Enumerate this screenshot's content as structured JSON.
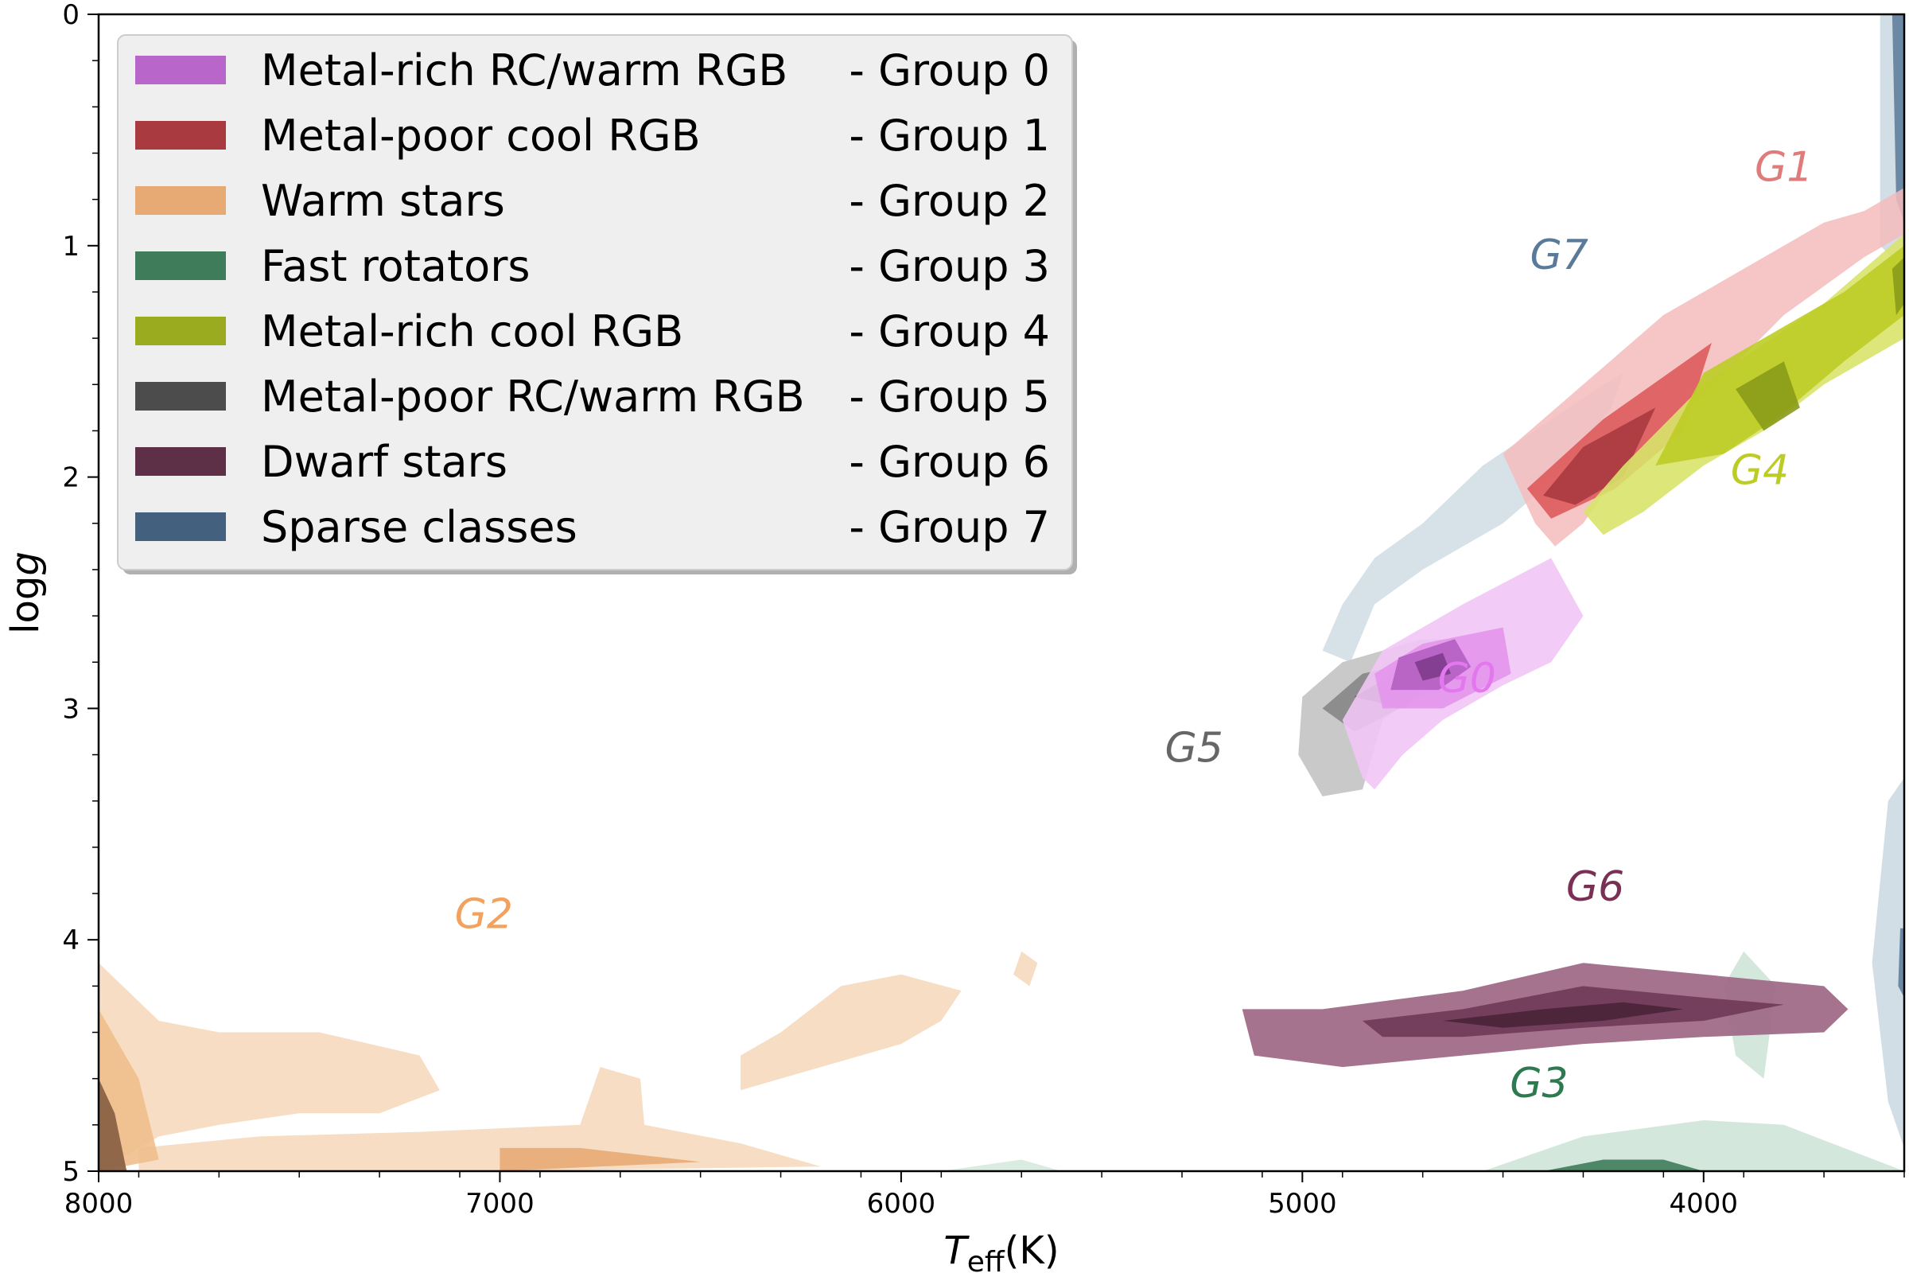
{
  "chart_data": {
    "type": "contour",
    "xlabel_main": "T",
    "xlabel_sub": "eff",
    "xlabel_unit": "(K)",
    "ylabel_main": "log",
    "ylabel_var": "g",
    "xlim": [
      8000,
      3500
    ],
    "ylim": [
      0,
      5
    ],
    "xticks": [
      8000,
      7000,
      6000,
      5000,
      4000
    ],
    "yticks": [
      0,
      1,
      2,
      3,
      4,
      5
    ],
    "x_minor_step": 200,
    "y_minor_step": 0.2,
    "legend_position": "upper-left",
    "legend": [
      {
        "name": "Metal-rich RC/warm RGB",
        "group": "- Group 0",
        "color": "#b866c9"
      },
      {
        "name": "Metal-poor cool RGB",
        "group": "- Group 1",
        "color": "#a83a40"
      },
      {
        "name": "Warm stars",
        "group": "- Group 2",
        "color": "#e8aa74"
      },
      {
        "name": "Fast rotators",
        "group": "- Group 3",
        "color": "#3e7c5a"
      },
      {
        "name": "Metal-rich cool RGB",
        "group": "- Group 4",
        "color": "#9aab1f"
      },
      {
        "name": "Metal-poor RC/warm RGB",
        "group": "- Group 5",
        "color": "#4c4c4c"
      },
      {
        "name": "Dwarf stars",
        "group": "- Group 6",
        "color": "#5e3048"
      },
      {
        "name": "Sparse classes",
        "group": "- Group 7",
        "color": "#44607f"
      }
    ],
    "annotations": [
      {
        "prefix": "G",
        "num": "0",
        "teff": 4590,
        "logg": 2.93,
        "color": "#e377ee"
      },
      {
        "prefix": "G",
        "num": "1",
        "teff": 3800,
        "logg": 0.72,
        "color": "#e07b7b"
      },
      {
        "prefix": "G",
        "num": "2",
        "teff": 7040,
        "logg": 3.95,
        "color": "#f2a15e"
      },
      {
        "prefix": "G",
        "num": "3",
        "teff": 4410,
        "logg": 4.68,
        "color": "#2e7a50"
      },
      {
        "prefix": "G",
        "num": "4",
        "teff": 3860,
        "logg": 2.03,
        "color": "#bccc25"
      },
      {
        "prefix": "G",
        "num": "5",
        "teff": 5270,
        "logg": 3.23,
        "color": "#666666"
      },
      {
        "prefix": "G",
        "num": "6",
        "teff": 4270,
        "logg": 3.83,
        "color": "#7a2f55"
      },
      {
        "prefix": "G",
        "num": "7",
        "teff": 4360,
        "logg": 1.1,
        "color": "#5a7a99"
      }
    ],
    "regions": [
      {
        "group": 7,
        "color": "#c9d8e0",
        "opacity": 0.85,
        "points": [
          [
            3560,
            0
          ],
          [
            3500,
            0
          ],
          [
            3500,
            1.1
          ],
          [
            3560,
            1.0
          ]
        ]
      },
      {
        "group": 7,
        "color": "#5f7f9c",
        "opacity": 0.9,
        "points": [
          [
            3530,
            0
          ],
          [
            3500,
            0
          ],
          [
            3500,
            0.9
          ],
          [
            3520,
            0.8
          ]
        ]
      },
      {
        "group": 7,
        "color": "#c9d8e0",
        "opacity": 0.85,
        "points": [
          [
            3540,
            3.4
          ],
          [
            3500,
            3.3
          ],
          [
            3500,
            4.9
          ],
          [
            3540,
            4.7
          ],
          [
            3580,
            4.1
          ]
        ]
      },
      {
        "group": 7,
        "color": "#5f7f9c",
        "opacity": 0.9,
        "points": [
          [
            3510,
            3.95
          ],
          [
            3500,
            3.95
          ],
          [
            3500,
            4.25
          ],
          [
            3515,
            4.2
          ]
        ]
      },
      {
        "group": 7,
        "color": "#c9d8e0",
        "opacity": 0.75,
        "points": [
          [
            4200,
            1.55
          ],
          [
            4250,
            1.6
          ],
          [
            4550,
            1.95
          ],
          [
            4700,
            2.2
          ],
          [
            4820,
            2.35
          ],
          [
            4900,
            2.55
          ],
          [
            4950,
            2.75
          ],
          [
            4880,
            2.8
          ],
          [
            4820,
            2.55
          ],
          [
            4700,
            2.4
          ],
          [
            4600,
            2.3
          ],
          [
            4500,
            2.2
          ],
          [
            4400,
            2.05
          ],
          [
            4320,
            1.9
          ],
          [
            4230,
            1.7
          ]
        ]
      },
      {
        "group": 1,
        "color": "#f4bcbc",
        "opacity": 0.85,
        "points": [
          [
            3500,
            0.75
          ],
          [
            3600,
            0.85
          ],
          [
            3700,
            0.9
          ],
          [
            3900,
            1.1
          ],
          [
            4100,
            1.3
          ],
          [
            4300,
            1.6
          ],
          [
            4500,
            1.9
          ],
          [
            4420,
            2.2
          ],
          [
            4370,
            2.3
          ],
          [
            4300,
            2.2
          ],
          [
            4200,
            1.95
          ],
          [
            4000,
            1.65
          ],
          [
            3800,
            1.3
          ],
          [
            3600,
            1.05
          ],
          [
            3500,
            0.95
          ]
        ]
      },
      {
        "group": 1,
        "color": "#de5a5c",
        "opacity": 0.9,
        "points": [
          [
            3980,
            1.42
          ],
          [
            4250,
            1.75
          ],
          [
            4440,
            2.05
          ],
          [
            4380,
            2.18
          ],
          [
            4220,
            2.05
          ],
          [
            4050,
            1.8
          ]
        ]
      },
      {
        "group": 1,
        "color": "#a83a40",
        "opacity": 0.9,
        "points": [
          [
            4120,
            1.7
          ],
          [
            4300,
            1.87
          ],
          [
            4400,
            2.08
          ],
          [
            4320,
            2.12
          ],
          [
            4200,
            2.0
          ]
        ]
      },
      {
        "group": 4,
        "color": "#d9e36a",
        "opacity": 0.9,
        "points": [
          [
            3500,
            0.95
          ],
          [
            3700,
            1.25
          ],
          [
            4000,
            1.6
          ],
          [
            4200,
            1.95
          ],
          [
            4300,
            2.15
          ],
          [
            4250,
            2.25
          ],
          [
            4150,
            2.15
          ],
          [
            4000,
            1.95
          ],
          [
            3850,
            1.8
          ],
          [
            3700,
            1.6
          ],
          [
            3500,
            1.4
          ]
        ]
      },
      {
        "group": 4,
        "color": "#bccc25",
        "opacity": 0.9,
        "points": [
          [
            3500,
            1.0
          ],
          [
            3650,
            1.2
          ],
          [
            3850,
            1.4
          ],
          [
            4000,
            1.55
          ],
          [
            4120,
            1.95
          ],
          [
            3950,
            1.9
          ],
          [
            3820,
            1.75
          ],
          [
            3650,
            1.5
          ],
          [
            3500,
            1.3
          ]
        ]
      },
      {
        "group": 4,
        "color": "#8a9a1a",
        "opacity": 0.9,
        "points": [
          [
            3800,
            1.5
          ],
          [
            3920,
            1.62
          ],
          [
            3850,
            1.8
          ],
          [
            3760,
            1.7
          ]
        ]
      },
      {
        "group": 4,
        "color": "#8a9a1a",
        "opacity": 0.9,
        "points": [
          [
            3500,
            1.05
          ],
          [
            3530,
            1.1
          ],
          [
            3520,
            1.3
          ],
          [
            3500,
            1.25
          ]
        ]
      },
      {
        "group": 2,
        "color": "#f5d9bc",
        "opacity": 0.9,
        "points": [
          [
            8000,
            4.1
          ],
          [
            7850,
            4.35
          ],
          [
            7700,
            4.4
          ],
          [
            7450,
            4.4
          ],
          [
            7200,
            4.5
          ],
          [
            7150,
            4.65
          ],
          [
            7300,
            4.75
          ],
          [
            7500,
            4.75
          ],
          [
            7700,
            4.8
          ],
          [
            7850,
            4.85
          ],
          [
            7950,
            4.95
          ],
          [
            8000,
            5.0
          ]
        ]
      },
      {
        "group": 2,
        "color": "#f5d9bc",
        "opacity": 0.9,
        "points": [
          [
            6300,
            4.4
          ],
          [
            6150,
            4.2
          ],
          [
            6000,
            4.15
          ],
          [
            5850,
            4.22
          ],
          [
            5900,
            4.35
          ],
          [
            6000,
            4.45
          ],
          [
            6200,
            4.55
          ],
          [
            6400,
            4.65
          ],
          [
            6400,
            4.5
          ]
        ]
      },
      {
        "group": 2,
        "color": "#f5d9bc",
        "opacity": 0.9,
        "points": [
          [
            5700,
            4.05
          ],
          [
            5660,
            4.1
          ],
          [
            5680,
            4.2
          ],
          [
            5720,
            4.15
          ]
        ]
      },
      {
        "group": 2,
        "color": "#f5d9bc",
        "opacity": 0.9,
        "points": [
          [
            7900,
            4.9
          ],
          [
            7600,
            4.85
          ],
          [
            7200,
            4.83
          ],
          [
            6800,
            4.8
          ],
          [
            6750,
            4.55
          ],
          [
            6650,
            4.6
          ],
          [
            6640,
            4.8
          ],
          [
            6400,
            4.88
          ],
          [
            6200,
            4.98
          ],
          [
            7000,
            5.0
          ],
          [
            7900,
            5.0
          ]
        ]
      },
      {
        "group": 2,
        "color": "#f0bf8c",
        "opacity": 0.9,
        "points": [
          [
            8000,
            4.3
          ],
          [
            7900,
            4.6
          ],
          [
            7850,
            4.95
          ],
          [
            8000,
            5.0
          ]
        ]
      },
      {
        "group": 2,
        "color": "#e8aa74",
        "opacity": 0.9,
        "points": [
          [
            7000,
            4.9
          ],
          [
            6800,
            4.9
          ],
          [
            6500,
            4.96
          ],
          [
            7000,
            5.0
          ]
        ]
      },
      {
        "group": 2,
        "color": "#8a6246",
        "opacity": 0.95,
        "points": [
          [
            8000,
            4.6
          ],
          [
            7960,
            4.75
          ],
          [
            7930,
            5.0
          ],
          [
            8000,
            5.0
          ]
        ]
      },
      {
        "group": 3,
        "color": "#cbe3d6",
        "opacity": 0.85,
        "points": [
          [
            4550,
            5.0
          ],
          [
            4300,
            4.85
          ],
          [
            4000,
            4.78
          ],
          [
            3800,
            4.8
          ],
          [
            3650,
            4.9
          ],
          [
            3500,
            5.0
          ]
        ]
      },
      {
        "group": 3,
        "color": "#cbe3d6",
        "opacity": 0.85,
        "points": [
          [
            3900,
            4.05
          ],
          [
            3820,
            4.2
          ],
          [
            3850,
            4.6
          ],
          [
            3920,
            4.5
          ],
          [
            3950,
            4.2
          ]
        ]
      },
      {
        "group": 3,
        "color": "#3e7c5a",
        "opacity": 0.9,
        "points": [
          [
            4400,
            5.0
          ],
          [
            4250,
            4.95
          ],
          [
            4100,
            4.95
          ],
          [
            4000,
            5.0
          ]
        ]
      },
      {
        "group": 3,
        "color": "#cbe3d6",
        "opacity": 0.7,
        "points": [
          [
            5900,
            5.0
          ],
          [
            5700,
            4.95
          ],
          [
            5600,
            5.0
          ]
        ]
      },
      {
        "group": 6,
        "color": "#9c6482",
        "opacity": 0.9,
        "points": [
          [
            5150,
            4.3
          ],
          [
            4950,
            4.3
          ],
          [
            4600,
            4.22
          ],
          [
            4300,
            4.1
          ],
          [
            4000,
            4.15
          ],
          [
            3700,
            4.2
          ],
          [
            3640,
            4.3
          ],
          [
            3700,
            4.4
          ],
          [
            4000,
            4.42
          ],
          [
            4300,
            4.45
          ],
          [
            4600,
            4.5
          ],
          [
            4900,
            4.55
          ],
          [
            5120,
            4.5
          ]
        ]
      },
      {
        "group": 6,
        "color": "#6f3a57",
        "opacity": 0.9,
        "points": [
          [
            4850,
            4.35
          ],
          [
            4600,
            4.3
          ],
          [
            4300,
            4.2
          ],
          [
            4000,
            4.25
          ],
          [
            3800,
            4.28
          ],
          [
            4000,
            4.35
          ],
          [
            4300,
            4.38
          ],
          [
            4600,
            4.42
          ],
          [
            4800,
            4.42
          ]
        ]
      },
      {
        "group": 6,
        "color": "#4a2438",
        "opacity": 0.9,
        "points": [
          [
            4650,
            4.35
          ],
          [
            4400,
            4.3
          ],
          [
            4200,
            4.27
          ],
          [
            4050,
            4.3
          ],
          [
            4250,
            4.35
          ],
          [
            4500,
            4.38
          ]
        ]
      },
      {
        "group": 5,
        "color": "#c6c6c6",
        "opacity": 0.95,
        "points": [
          [
            5000,
            2.95
          ],
          [
            4900,
            2.8
          ],
          [
            4700,
            2.7
          ],
          [
            4550,
            2.7
          ],
          [
            4650,
            2.85
          ],
          [
            4800,
            3.05
          ],
          [
            4850,
            3.35
          ],
          [
            4950,
            3.38
          ],
          [
            5010,
            3.2
          ]
        ]
      },
      {
        "group": 5,
        "color": "#8a8a8a",
        "opacity": 0.95,
        "points": [
          [
            4950,
            3.0
          ],
          [
            4850,
            2.85
          ],
          [
            4720,
            2.8
          ],
          [
            4620,
            2.82
          ],
          [
            4700,
            2.95
          ],
          [
            4870,
            3.1
          ]
        ]
      },
      {
        "group": 5,
        "color": "#3c3c3c",
        "opacity": 0.95,
        "points": [
          [
            4870,
            2.95
          ],
          [
            4770,
            2.85
          ],
          [
            4680,
            2.88
          ],
          [
            4750,
            3.0
          ]
        ]
      },
      {
        "group": 0,
        "color": "#f2c5f6",
        "opacity": 0.9,
        "points": [
          [
            4380,
            2.35
          ],
          [
            4600,
            2.55
          ],
          [
            4800,
            2.75
          ],
          [
            4900,
            3.05
          ],
          [
            4850,
            3.3
          ],
          [
            4820,
            3.35
          ],
          [
            4750,
            3.2
          ],
          [
            4650,
            3.05
          ],
          [
            4500,
            2.9
          ],
          [
            4380,
            2.8
          ],
          [
            4300,
            2.6
          ]
        ]
      },
      {
        "group": 0,
        "color": "#e495ec",
        "opacity": 0.9,
        "points": [
          [
            4500,
            2.65
          ],
          [
            4700,
            2.72
          ],
          [
            4820,
            2.85
          ],
          [
            4800,
            3.0
          ],
          [
            4650,
            3.0
          ],
          [
            4480,
            2.85
          ]
        ]
      },
      {
        "group": 0,
        "color": "#b25fc2",
        "opacity": 0.9,
        "points": [
          [
            4620,
            2.7
          ],
          [
            4760,
            2.78
          ],
          [
            4780,
            2.92
          ],
          [
            4660,
            2.92
          ],
          [
            4580,
            2.82
          ]
        ]
      },
      {
        "group": 0,
        "color": "#7e3a8c",
        "opacity": 0.9,
        "points": [
          [
            4650,
            2.76
          ],
          [
            4720,
            2.8
          ],
          [
            4700,
            2.88
          ],
          [
            4630,
            2.85
          ]
        ]
      }
    ]
  }
}
